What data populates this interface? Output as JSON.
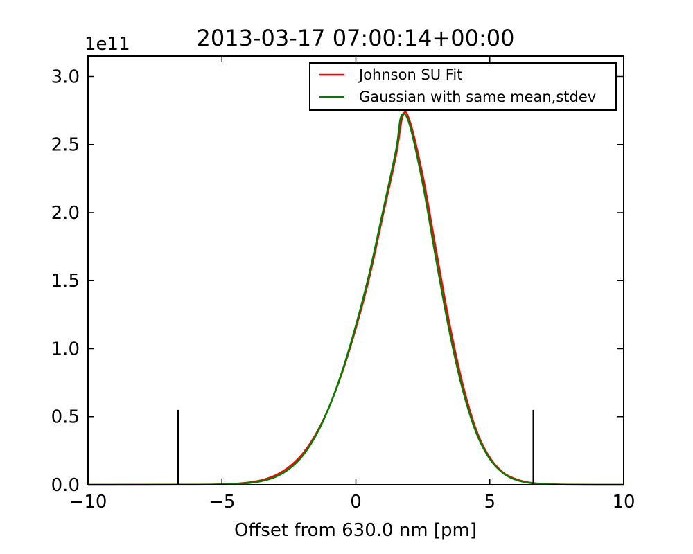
{
  "chart_data": {
    "type": "line",
    "title": "2013-03-17 07:00:14+00:00",
    "xlabel": "Offset from 630.0 nm [pm]",
    "ylabel": "",
    "y_scale_label": "1e11",
    "xlim": [
      -10,
      10
    ],
    "ylim": [
      0,
      3.15
    ],
    "x_ticks": [
      -10,
      -5,
      0,
      5,
      10
    ],
    "x_tick_labels": [
      "−10",
      "−5",
      "0",
      "5",
      "10"
    ],
    "y_ticks": [
      0,
      0.5,
      1,
      1.5,
      2,
      2.5,
      3
    ],
    "y_tick_labels": [
      "0.0",
      "0.5",
      "1.0",
      "1.5",
      "2.0",
      "2.5",
      "3.0"
    ],
    "grid": false,
    "legend_position": "top-right",
    "series": [
      {
        "name": "Johnson SU Fit",
        "color": "#ff0000",
        "x": [
          -10,
          -6,
          -5,
          -4.5,
          -4,
          -3.5,
          -3,
          -2.5,
          -2,
          -1.5,
          -1,
          -0.5,
          0,
          0.5,
          1,
          1.5,
          1.75,
          2,
          2.5,
          3,
          3.5,
          4,
          4.5,
          5,
          5.5,
          6,
          6.5,
          7,
          8,
          10
        ],
        "y": [
          0,
          0.0015,
          0.004,
          0.008,
          0.017,
          0.035,
          0.07,
          0.13,
          0.225,
          0.37,
          0.57,
          0.83,
          1.15,
          1.52,
          1.97,
          2.42,
          2.71,
          2.68,
          2.27,
          1.72,
          1.18,
          0.73,
          0.4,
          0.2,
          0.09,
          0.04,
          0.016,
          0.007,
          0.001,
          0
        ]
      },
      {
        "name": "Gaussian with same mean,stdev",
        "color": "#008000",
        "x": [
          -10,
          -6,
          -5,
          -4.5,
          -4,
          -3.5,
          -3,
          -2.5,
          -2,
          -1.5,
          -1,
          -0.5,
          0,
          0.5,
          1,
          1.5,
          1.7,
          2,
          2.5,
          3,
          3.5,
          4,
          4.5,
          5,
          5.5,
          6,
          6.5,
          7,
          8,
          10
        ],
        "y": [
          0,
          0.0008,
          0.003,
          0.006,
          0.013,
          0.028,
          0.058,
          0.115,
          0.21,
          0.36,
          0.57,
          0.84,
          1.17,
          1.55,
          2.0,
          2.46,
          2.71,
          2.65,
          2.21,
          1.65,
          1.12,
          0.69,
          0.38,
          0.19,
          0.085,
          0.035,
          0.013,
          0.005,
          0.0005,
          0
        ]
      }
    ],
    "vertical_lines": [
      {
        "x": -6.63,
        "y_top": 0.55,
        "color": "#000000"
      },
      {
        "x": 6.63,
        "y_top": 0.55,
        "color": "#000000"
      }
    ]
  }
}
